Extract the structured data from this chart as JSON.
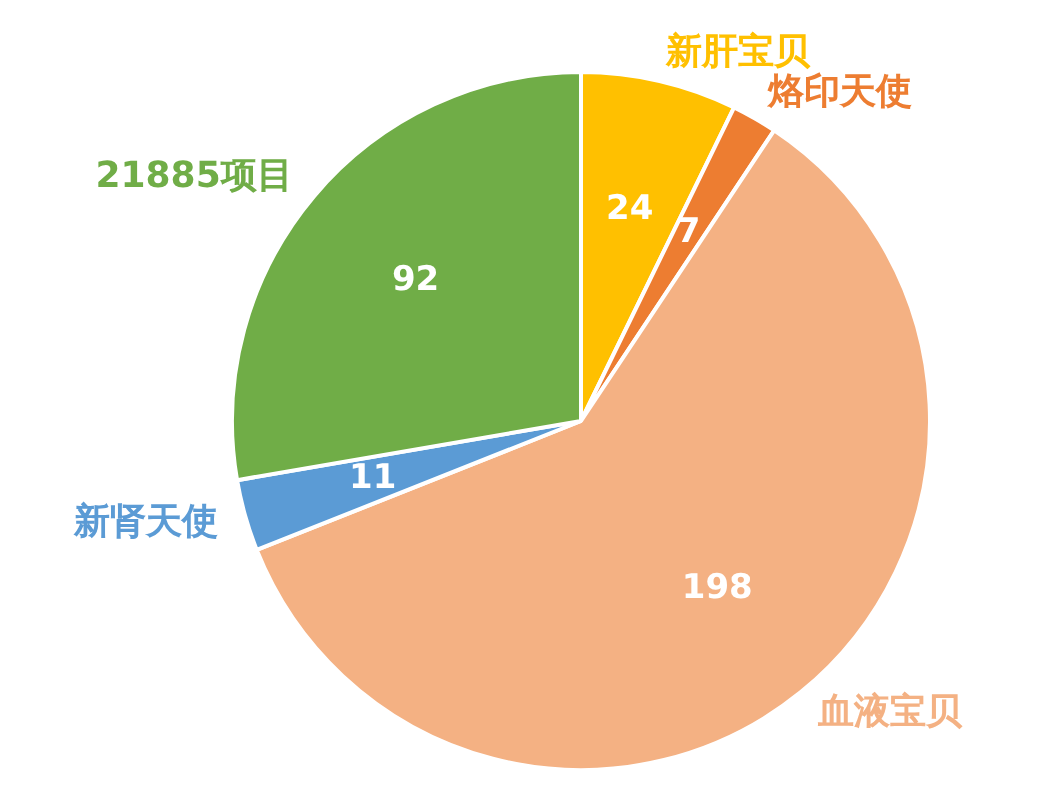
{
  "chart_data": {
    "type": "pie",
    "categories": [
      "新肝宝贝",
      "烙印天使",
      "血液宝贝",
      "新肾天使",
      "21885项目"
    ],
    "values": [
      24,
      7,
      198,
      11,
      92
    ],
    "colors": [
      "#ffc000",
      "#ed7d31",
      "#f4b183",
      "#5b9bd5",
      "#70ad47"
    ],
    "data_labels": true,
    "legend": false
  }
}
